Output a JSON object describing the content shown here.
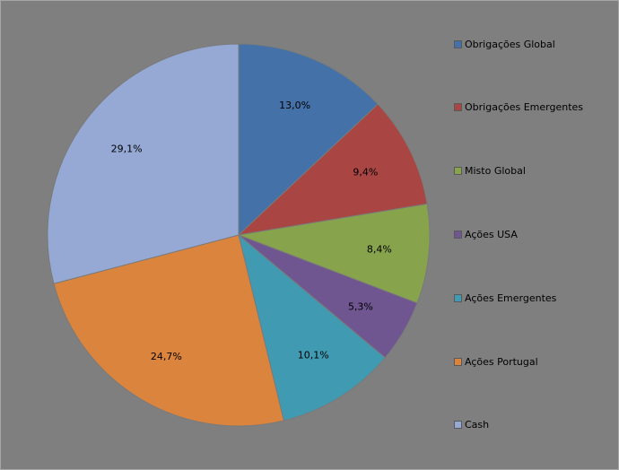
{
  "chart_data": {
    "type": "pie",
    "title": "",
    "legend_position": "right",
    "slices": [
      {
        "name": "Obrigações Global",
        "value": 13.0,
        "label": "13,0%",
        "color": "#4472a8"
      },
      {
        "name": "Obrigações Emergentes",
        "value": 9.4,
        "label": "9,4%",
        "color": "#a94543"
      },
      {
        "name": "Misto Global",
        "value": 8.4,
        "label": "8,4%",
        "color": "#87a34c"
      },
      {
        "name": "Ações USA",
        "value": 5.3,
        "label": "5,3%",
        "color": "#6f5690"
      },
      {
        "name": "Ações Emergentes",
        "value": 10.1,
        "label": "10,1%",
        "color": "#3f9ab2"
      },
      {
        "name": "Ações Portugal",
        "value": 24.7,
        "label": "24,7%",
        "color": "#db843d"
      },
      {
        "name": "Cash",
        "value": 29.1,
        "label": "29,1%",
        "color": "#95a9d4"
      }
    ]
  }
}
